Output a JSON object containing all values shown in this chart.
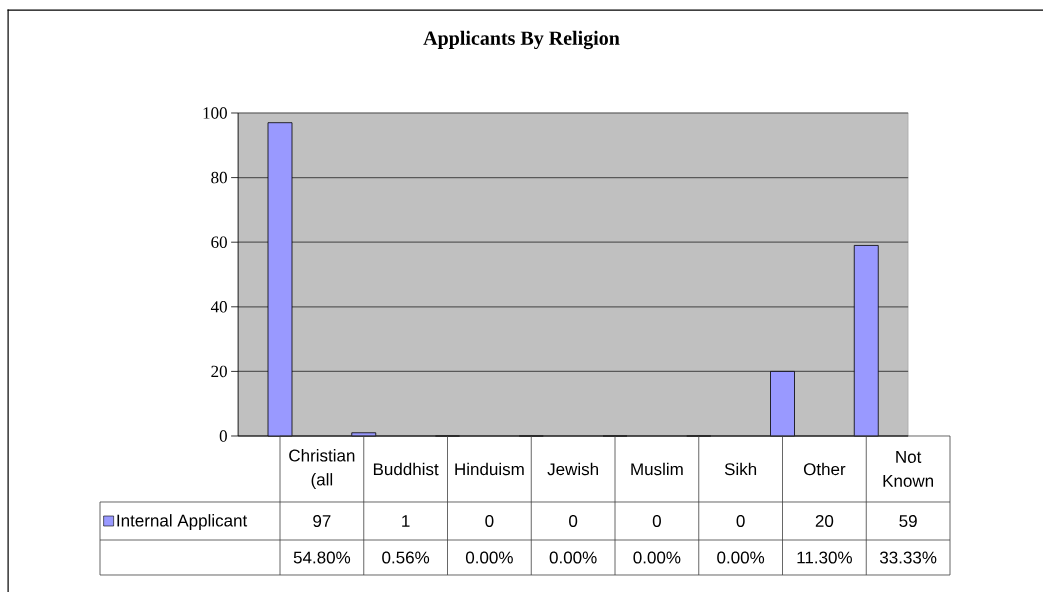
{
  "chart_data": {
    "type": "bar",
    "title": "Applicants By Religion",
    "categories": [
      "Christian (all",
      "Buddhist",
      "Hinduism",
      "Jewish",
      "Muslim",
      "Sikh",
      "Other",
      "Not Known"
    ],
    "series": [
      {
        "name": "Internal Applicant",
        "color": "#9999ff",
        "values": [
          97,
          1,
          0,
          0,
          0,
          0,
          20,
          59
        ]
      }
    ],
    "ylim": [
      0,
      100
    ],
    "yticks": [
      0,
      20,
      40,
      60,
      80,
      100
    ],
    "grid": "y",
    "legend": "bottom left",
    "data_labels": true,
    "annotations": [
      "54.80%",
      "0.56%",
      "0.00%",
      "0.00%",
      "0.00%",
      "0.00%",
      "11.30%",
      "33.33%"
    ]
  }
}
